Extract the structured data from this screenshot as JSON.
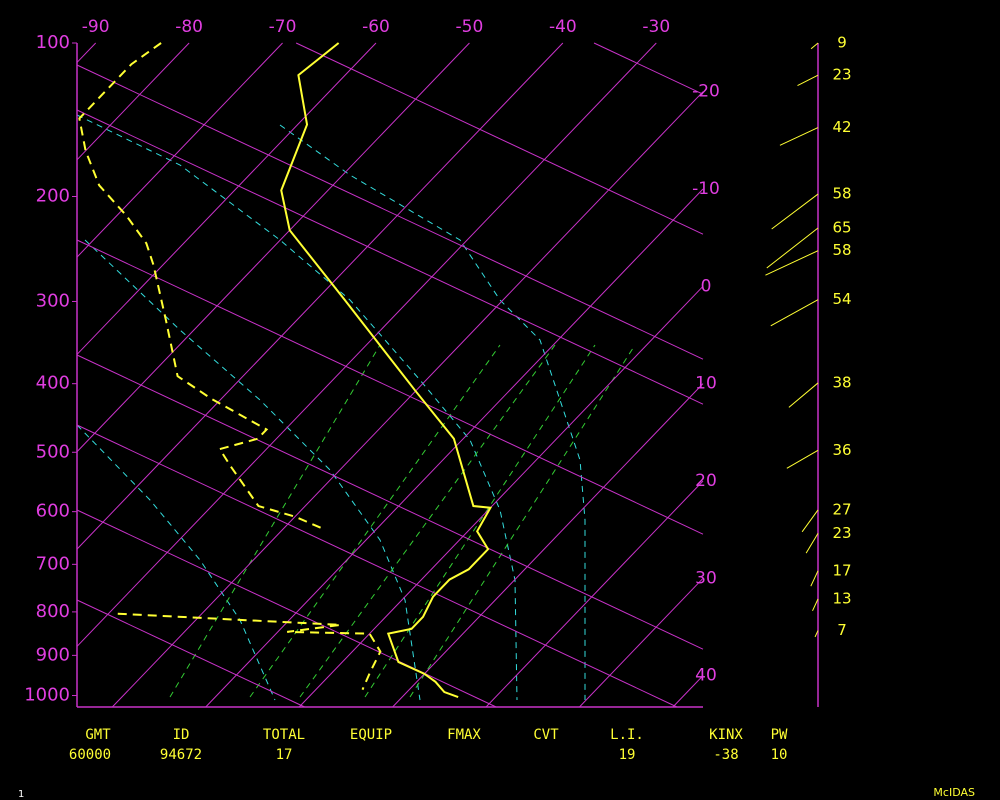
{
  "chart_data": {
    "type": "skewt",
    "ylim": [
      100,
      1030
    ],
    "yticks": [
      100,
      200,
      300,
      400,
      500,
      600,
      700,
      800,
      900,
      1000
    ],
    "xlim": [
      -92,
      -25
    ],
    "xticks": [
      -90,
      -80,
      -70,
      -60,
      -50,
      -40,
      -30
    ],
    "right_ticks": [
      -20,
      -10,
      0,
      10,
      20,
      30,
      40
    ],
    "grid_color": "#c832c8",
    "series": [
      {
        "color": "#ffff33",
        "dash": false,
        "y": [
          100,
          117,
          147,
          195,
          229,
          298,
          410,
          479,
          590,
          593,
          636,
          670,
          710,
          731,
          767,
          811,
          838,
          849,
          916,
          945,
          965,
          991,
          1004
        ],
        "values": [
          -64,
          -65,
          -59,
          -55,
          -50,
          -37,
          -20,
          -11,
          -2,
          0,
          1,
          4,
          4,
          3,
          3,
          4,
          4,
          2,
          6,
          10,
          12,
          14,
          16
        ]
      },
      {
        "color": "#ffff33",
        "dash": true,
        "y": [
          100,
          111,
          133,
          143,
          165,
          191,
          216,
          241,
          262,
          321,
          390,
          421,
          465,
          479,
          495,
          523,
          590,
          609,
          630,
          null,
          804,
          817,
          829,
          845,
          849,
          891,
          940,
          985
        ],
        "values": [
          -83,
          -84,
          -84,
          -84,
          -80,
          -75,
          -69,
          -64,
          -61,
          -54,
          -47,
          -41,
          -32,
          -32,
          -35,
          -32,
          -25,
          -20,
          -16,
          null,
          -29,
          -16,
          -4,
          -9,
          0,
          3,
          4,
          5
        ]
      }
    ],
    "winds": {
      "color": "#ffff33",
      "pressure": [
        100,
        117,
        149,
        198,
        227,
        248,
        298,
        399,
        497,
        597,
        640,
        713,
        772,
        842
      ],
      "speed": [
        9,
        23,
        42,
        58,
        65,
        58,
        54,
        38,
        36,
        27,
        23,
        17,
        13,
        7
      ],
      "direction": [
        230,
        243,
        245,
        233,
        232,
        245,
        241,
        230,
        240,
        216,
        211,
        205,
        205,
        205
      ]
    }
  },
  "footer": {
    "columns": [
      {
        "label": "GMT",
        "value": 60000
      },
      {
        "label": "ID",
        "value": 94672
      },
      {
        "label": "TOTAL",
        "value": 17
      },
      {
        "label": "EQUIP"
      },
      {
        "label": "FMAX"
      },
      {
        "label": "CVT"
      },
      {
        "label": "L.I.",
        "value": 19
      },
      {
        "label": "KINX",
        "value": -38
      },
      {
        "label": "PW",
        "value": 10
      }
    ]
  },
  "page_number": "1",
  "brand": "McIDAS"
}
